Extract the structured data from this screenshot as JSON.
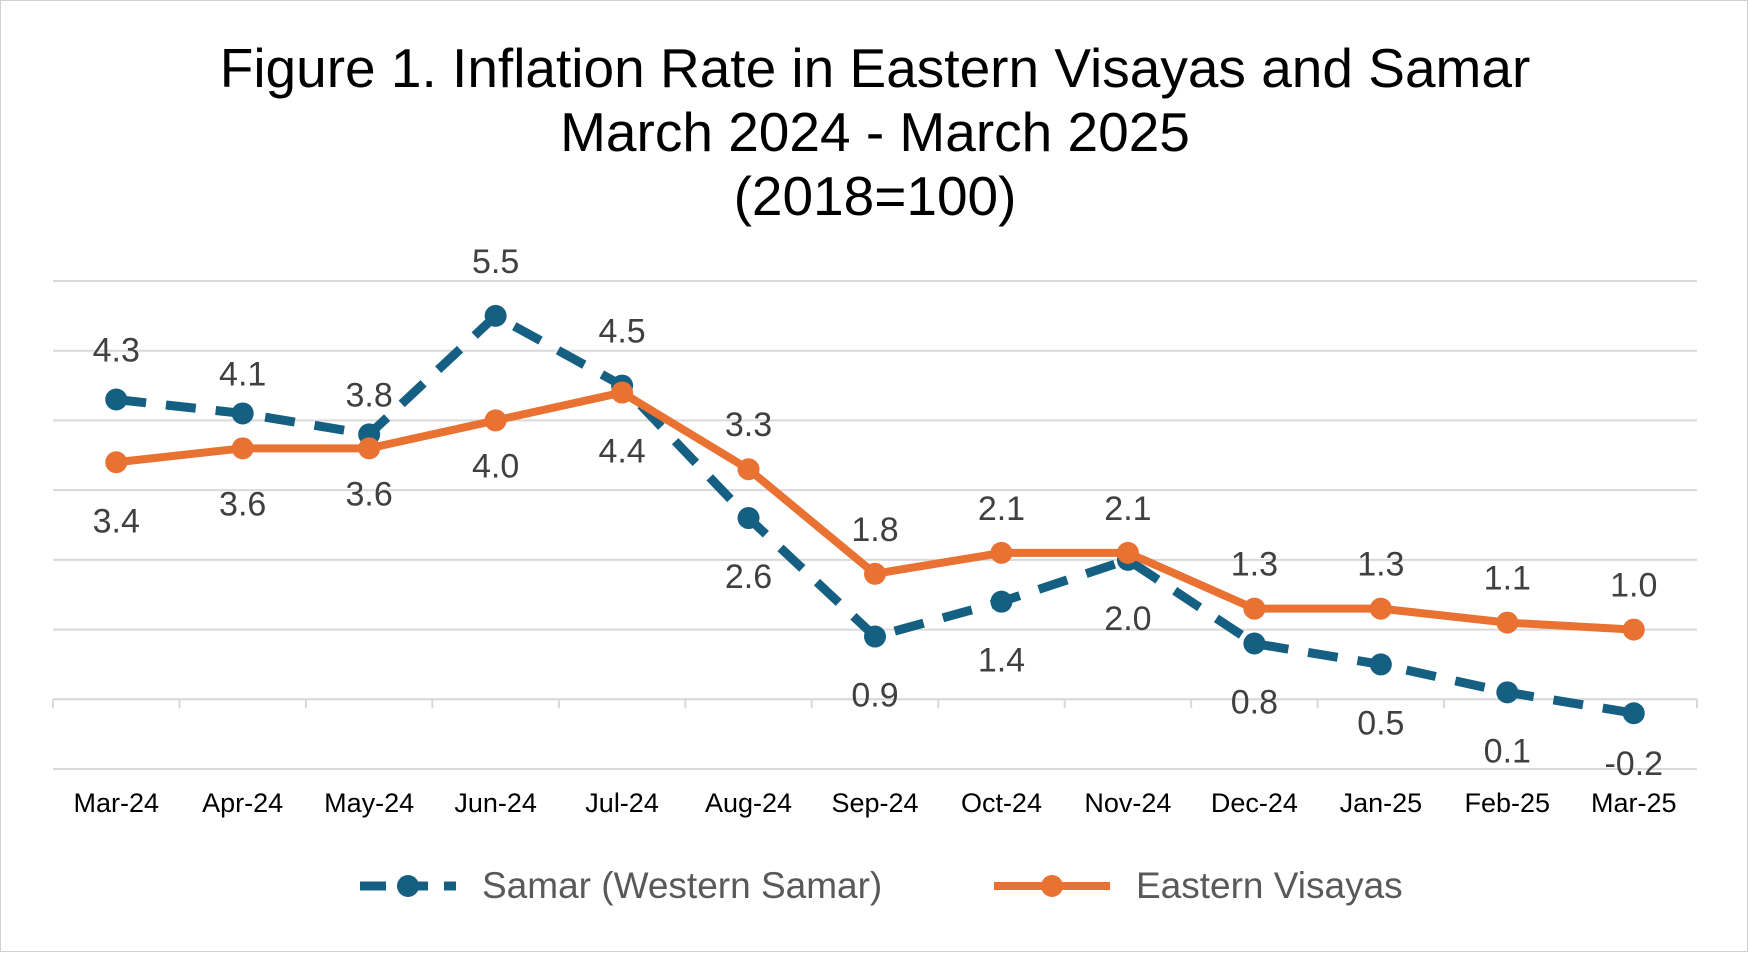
{
  "chart_data": {
    "type": "line",
    "title": [
      "Figure 1. Inflation Rate in Eastern Visayas and Samar",
      "March 2024 - March 2025",
      "(2018=100)"
    ],
    "categories": [
      "Mar-24",
      "Apr-24",
      "May-24",
      "Jun-24",
      "Jul-24",
      "Aug-24",
      "Sep-24",
      "Oct-24",
      "Nov-24",
      "Dec-24",
      "Jan-25",
      "Feb-25",
      "Mar-25"
    ],
    "series": [
      {
        "name": "Samar (Western Samar)",
        "values": [
          4.3,
          4.1,
          3.8,
          5.5,
          4.5,
          2.6,
          0.9,
          1.4,
          2.0,
          0.8,
          0.5,
          0.1,
          -0.2
        ],
        "labels": [
          "4.3",
          "4.1",
          "3.8",
          "5.5",
          "4.5",
          "2.6",
          "0.9",
          "1.4",
          "2.0",
          "0.8",
          "0.5",
          "0.1",
          "-0.2"
        ],
        "color": "#156082",
        "style": "dashed"
      },
      {
        "name": "Eastern Visayas",
        "values": [
          3.4,
          3.6,
          3.6,
          4.0,
          4.4,
          3.3,
          1.8,
          2.1,
          2.1,
          1.3,
          1.3,
          1.1,
          1.0
        ],
        "labels": [
          "3.4",
          "3.6",
          "3.6",
          "4.0",
          "4.4",
          "3.3",
          "1.8",
          "2.1",
          "2.1",
          "1.3",
          "1.3",
          "1.1",
          "1.0"
        ],
        "color": "#E97132",
        "style": "solid"
      }
    ],
    "ylim": [
      -1,
      6
    ],
    "grid": true,
    "legend_position": "bottom"
  }
}
